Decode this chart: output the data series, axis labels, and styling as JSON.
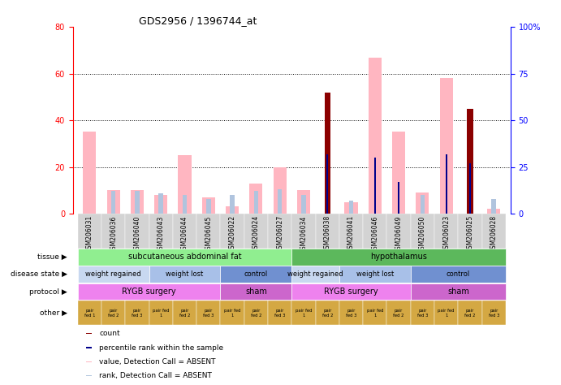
{
  "title": "GDS2956 / 1396744_at",
  "samples": [
    "GSM206031",
    "GSM206036",
    "GSM206040",
    "GSM206043",
    "GSM206044",
    "GSM206045",
    "GSM206022",
    "GSM206024",
    "GSM206027",
    "GSM206034",
    "GSM206038",
    "GSM206041",
    "GSM206046",
    "GSM206049",
    "GSM206050",
    "GSM206023",
    "GSM206025",
    "GSM206028"
  ],
  "count_values": [
    0,
    0,
    0,
    0,
    0,
    0,
    0,
    0,
    0,
    0,
    52,
    0,
    0,
    0,
    0,
    0,
    45,
    0
  ],
  "value_absent": [
    35,
    10,
    10,
    8,
    25,
    7,
    3,
    13,
    20,
    10,
    0,
    5,
    67,
    35,
    9,
    58,
    0,
    2
  ],
  "rank_absent": [
    0,
    12,
    12,
    11,
    10,
    8,
    10,
    12,
    13,
    10,
    0,
    7,
    0,
    0,
    10,
    0,
    0,
    8
  ],
  "percentile_rank": [
    0,
    0,
    0,
    0,
    0,
    0,
    0,
    0,
    0,
    0,
    32,
    0,
    30,
    17,
    0,
    32,
    27,
    0
  ],
  "ylim_left": [
    0,
    80
  ],
  "ylim_right": [
    0,
    100
  ],
  "yticks_left": [
    0,
    20,
    40,
    60,
    80
  ],
  "yticks_right": [
    0,
    25,
    50,
    75,
    100
  ],
  "tissue_groups": [
    {
      "label": "subcutaneous abdominal fat",
      "start": 0,
      "end": 9,
      "color": "#90ee90"
    },
    {
      "label": "hypothalamus",
      "start": 9,
      "end": 18,
      "color": "#5cb85c"
    }
  ],
  "disease_groups": [
    {
      "label": "weight regained",
      "start": 0,
      "end": 3,
      "color": "#c8d8f0"
    },
    {
      "label": "weight lost",
      "start": 3,
      "end": 6,
      "color": "#a8c0e8"
    },
    {
      "label": "control",
      "start": 6,
      "end": 9,
      "color": "#7090d0"
    },
    {
      "label": "weight regained",
      "start": 9,
      "end": 11,
      "color": "#c8d8f0"
    },
    {
      "label": "weight lost",
      "start": 11,
      "end": 14,
      "color": "#a8c0e8"
    },
    {
      "label": "control",
      "start": 14,
      "end": 18,
      "color": "#7090d0"
    }
  ],
  "protocol_groups": [
    {
      "label": "RYGB surgery",
      "start": 0,
      "end": 6,
      "color": "#ee82ee"
    },
    {
      "label": "sham",
      "start": 6,
      "end": 9,
      "color": "#cc66cc"
    },
    {
      "label": "RYGB surgery",
      "start": 9,
      "end": 14,
      "color": "#ee82ee"
    },
    {
      "label": "sham",
      "start": 14,
      "end": 18,
      "color": "#cc66cc"
    }
  ],
  "other_labels": [
    "pair\nfed 1",
    "pair\nfed 2",
    "pair\nfed 3",
    "pair fed\n1",
    "pair\nfed 2",
    "pair\nfed 3",
    "pair fed\n1",
    "pair\nfed 2",
    "pair\nfed 3",
    "pair fed\n1",
    "pair\nfed 2",
    "pair\nfed 3",
    "pair fed\n1",
    "pair\nfed 2",
    "pair\nfed 3",
    "pair fed\n1",
    "pair\nfed 2",
    "pair\nfed 3"
  ],
  "other_color": "#d4a843",
  "bar_width": 0.55,
  "count_color": "#8b0000",
  "value_absent_color": "#ffb6c1",
  "rank_absent_color": "#b0c4de",
  "percentile_color": "#00008b",
  "background_color": "#ffffff",
  "left_axis_color": "red",
  "right_axis_color": "blue"
}
